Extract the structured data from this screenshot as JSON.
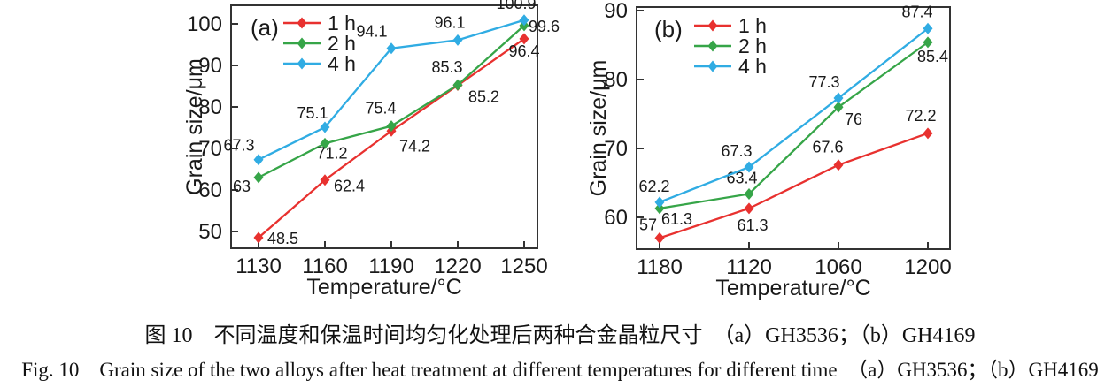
{
  "page": {
    "background": "#ffffff"
  },
  "caption": {
    "zh": "图 10　不同温度和保温时间均匀化处理后两种合金晶粒尺寸　（a）GH3536；（b）GH4169",
    "en": "Fig. 10　Grain size of the two alloys after heat treatment at different temperatures for different time　（a）GH3536；（b）GH4169"
  },
  "colors": {
    "series_1h": "#e8312f",
    "series_2h": "#36a548",
    "series_4h": "#30ace3",
    "axis": "#333333",
    "text": "#1a1a1a"
  },
  "chart_data": [
    {
      "type": "line",
      "id": "a",
      "panel_label": "(a)",
      "alloy": "GH3536",
      "xlabel": "Temperature/°C",
      "ylabel": "Grain size/μm",
      "categories": [
        "1130",
        "1160",
        "1190",
        "1220",
        "1250"
      ],
      "yticks": [
        50,
        60,
        70,
        80,
        90,
        100
      ],
      "ylim": [
        46,
        104.5
      ],
      "grid": false,
      "legend_position": "top-left-inside",
      "series": [
        {
          "name": "1 h",
          "color": "#e8312f",
          "values": [
            48.5,
            62.4,
            74.2,
            85.2,
            96.4
          ],
          "labels": [
            "48.5",
            "62.4",
            "74.2",
            "85.2",
            "96.4"
          ],
          "label_pos": [
            [
              10,
              7,
              "start"
            ],
            [
              10,
              13,
              "start"
            ],
            [
              9,
              23,
              "start"
            ],
            [
              12,
              19,
              "start"
            ],
            [
              0,
              20,
              "middle"
            ]
          ]
        },
        {
          "name": "2 h",
          "color": "#36a548",
          "values": [
            63,
            71.2,
            75.4,
            85.3,
            99.6
          ],
          "labels": [
            "63",
            "71.2",
            "75.4",
            "85.3",
            "99.6"
          ],
          "label_pos": [
            [
              -19,
              16,
              "middle"
            ],
            [
              8,
              17,
              "middle"
            ],
            [
              -12,
              -14,
              "middle"
            ],
            [
              -12,
              -14,
              "middle"
            ],
            [
              5,
              7,
              "start"
            ]
          ]
        },
        {
          "name": "4 h",
          "color": "#30ace3",
          "values": [
            67.3,
            75.1,
            94.1,
            96.1,
            100.9
          ],
          "labels": [
            "67.3",
            "75.1",
            "94.1",
            "96.1",
            "100.9"
          ],
          "label_pos": [
            [
              -22,
              -10,
              "middle"
            ],
            [
              -14,
              -10,
              "middle"
            ],
            [
              -22,
              -13,
              "middle"
            ],
            [
              -9,
              -14,
              "middle"
            ],
            [
              -9,
              -13,
              "middle"
            ]
          ]
        }
      ]
    },
    {
      "type": "line",
      "id": "b",
      "panel_label": "(b)",
      "alloy": "GH4169",
      "xlabel": "Temperature/°C",
      "ylabel": "Grain size/μm",
      "categories": [
        "1180",
        "1120",
        "1060",
        "1200"
      ],
      "yticks": [
        60,
        70,
        80,
        90
      ],
      "ylim": [
        55,
        90.8
      ],
      "grid": false,
      "legend_position": "top-left-inside",
      "series": [
        {
          "name": "1 h",
          "color": "#e8312f",
          "values": [
            57,
            61.3,
            67.6,
            72.2
          ],
          "labels": [
            "57",
            "61.3",
            "67.6",
            "72.2"
          ],
          "label_pos": [
            [
              -13,
              -9,
              "middle"
            ],
            [
              4,
              25,
              "middle"
            ],
            [
              -12,
              -14,
              "middle"
            ],
            [
              -8,
              -14,
              "middle"
            ]
          ]
        },
        {
          "name": "2 h",
          "color": "#36a548",
          "values": [
            61.3,
            63.4,
            76,
            85.4
          ],
          "labels": [
            "61.3",
            "63.4",
            "76",
            "85.4"
          ],
          "label_pos": [
            [
              2,
              18,
              "start"
            ],
            [
              -8,
              -12,
              "middle"
            ],
            [
              7,
              20,
              "start"
            ],
            [
              -12,
              22,
              "start"
            ]
          ]
        },
        {
          "name": "4 h",
          "color": "#30ace3",
          "values": [
            62.2,
            67.3,
            77.3,
            87.4
          ],
          "labels": [
            "62.2",
            "67.3",
            "77.3",
            "87.4"
          ],
          "label_pos": [
            [
              -6,
              -12,
              "middle"
            ],
            [
              -14,
              -12,
              "middle"
            ],
            [
              -16,
              -12,
              "middle"
            ],
            [
              -12,
              -13,
              "middle"
            ]
          ]
        }
      ]
    }
  ]
}
